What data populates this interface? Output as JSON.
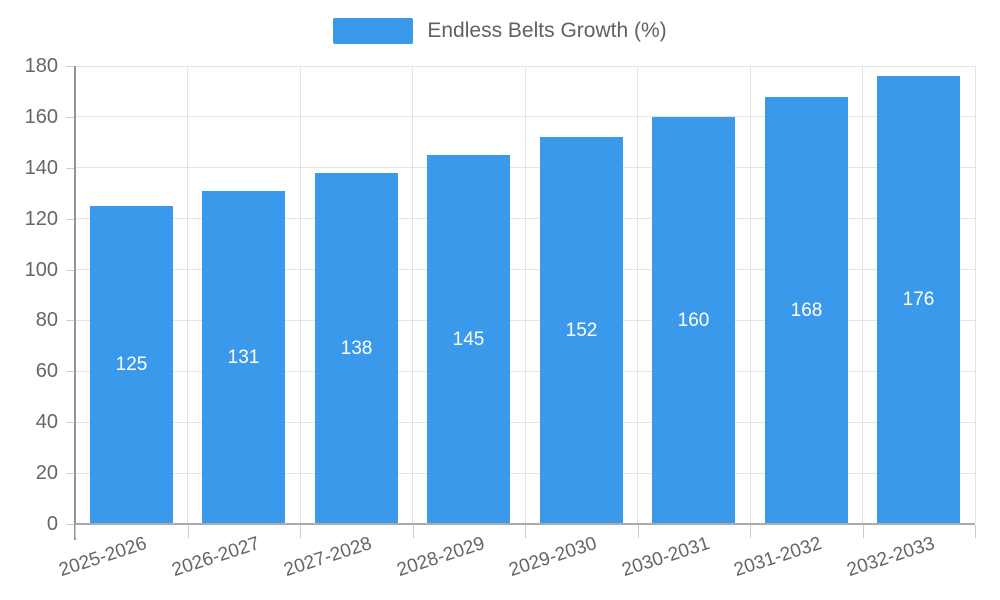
{
  "legend": {
    "label": "Endless Belts Growth (%)"
  },
  "colors": {
    "bar": "#3B99EC",
    "bar_value_text": "#ffffff",
    "axis_text": "#666666",
    "legend_text": "#616161",
    "gridline": "#e4e4e4",
    "tick": "#cccccc",
    "y_axis_line": "#949494",
    "x_axis_line": "#ababab"
  },
  "chart_data": {
    "type": "bar",
    "title": "Endless Belts Growth (%)",
    "legend_entries": [
      "Endless Belts Growth (%)"
    ],
    "legend_position": "top-center",
    "categories": [
      "2025-2026",
      "2026-2027",
      "2027-2028",
      "2028-2029",
      "2029-2030",
      "2030-2031",
      "2031-2032",
      "2032-2033"
    ],
    "series": [
      {
        "name": "Endless Belts Growth (%)",
        "values": [
          125,
          131,
          138,
          145,
          152,
          160,
          168,
          176
        ],
        "data_labels": [
          "125",
          "131",
          "138",
          "145",
          "152",
          "160",
          "168",
          "176"
        ],
        "color": "#3B99EC"
      }
    ],
    "xlabel": "",
    "ylabel": "",
    "ylim": [
      0,
      180
    ],
    "ytick_step": 20,
    "yticks": [
      0,
      20,
      40,
      60,
      80,
      100,
      120,
      140,
      160,
      180
    ],
    "grid": true,
    "grid_vertical": true,
    "x_label_rotation_deg": -18,
    "data_label_position": "center-inside"
  }
}
